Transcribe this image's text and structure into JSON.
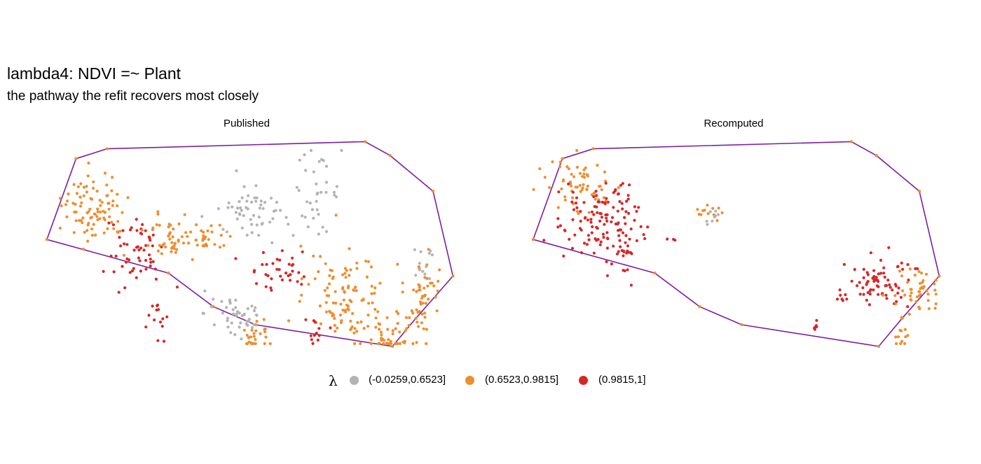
{
  "title": "lambda4: NDVI =~ Plant",
  "subtitle": "the pathway the refit recovers most closely",
  "legend": {
    "title": "λ",
    "items": [
      {
        "label": "(-0.0259,0.6523]",
        "color": "#B3B3B3"
      },
      {
        "label": "(0.6523,0.9815]",
        "color": "#EE8E2E"
      },
      {
        "label": "(0.9815,1]",
        "color": "#D62728"
      }
    ]
  },
  "colors": {
    "hull": "#7B1FA2",
    "grey": "#B3B3B3",
    "orange": "#EE8E2E",
    "red": "#D62728"
  },
  "chart_data": [
    {
      "type": "scatter",
      "panel": "Published",
      "grid": false,
      "axes": "none",
      "hull": [
        [
          0.059,
          0.474
        ],
        [
          0.122,
          0.089
        ],
        [
          0.189,
          0.042
        ],
        [
          0.747,
          0.008
        ],
        [
          0.801,
          0.074
        ],
        [
          0.894,
          0.244
        ],
        [
          0.937,
          0.648
        ],
        [
          0.857,
          0.849
        ],
        [
          0.806,
          0.983
        ],
        [
          0.51,
          0.88
        ],
        [
          0.419,
          0.794
        ],
        [
          0.322,
          0.634
        ],
        [
          0.059,
          0.474
        ]
      ],
      "clusters": [
        {
          "class": "(0.6523,0.9815]",
          "cx": 0.16,
          "cy": 0.32,
          "rx": 0.07,
          "ry": 0.16,
          "n": 90
        },
        {
          "class": "(0.9815,1]",
          "cx": 0.25,
          "cy": 0.53,
          "rx": 0.06,
          "ry": 0.18,
          "n": 55
        },
        {
          "class": "(0.6523,0.9815]",
          "cx": 0.33,
          "cy": 0.48,
          "rx": 0.06,
          "ry": 0.12,
          "n": 45
        },
        {
          "class": "(0.9815,1]",
          "cx": 0.3,
          "cy": 0.82,
          "rx": 0.03,
          "ry": 0.12,
          "n": 15
        },
        {
          "class": "(0.6523,0.9815]",
          "cx": 0.4,
          "cy": 0.47,
          "rx": 0.04,
          "ry": 0.08,
          "n": 25
        },
        {
          "class": "(-0.0259,0.6523]",
          "cx": 0.51,
          "cy": 0.35,
          "rx": 0.08,
          "ry": 0.12,
          "n": 55
        },
        {
          "class": "(-0.0259,0.6523]",
          "cx": 0.64,
          "cy": 0.25,
          "rx": 0.05,
          "ry": 0.17,
          "n": 35
        },
        {
          "class": "(-0.0259,0.6523]",
          "cx": 0.47,
          "cy": 0.83,
          "rx": 0.07,
          "ry": 0.12,
          "n": 45
        },
        {
          "class": "(0.6523,0.9815]",
          "cx": 0.51,
          "cy": 0.93,
          "rx": 0.04,
          "ry": 0.09,
          "n": 25
        },
        {
          "class": "(0.9815,1]",
          "cx": 0.56,
          "cy": 0.61,
          "rx": 0.07,
          "ry": 0.1,
          "n": 35
        },
        {
          "class": "(0.6523,0.9815]",
          "cx": 0.71,
          "cy": 0.76,
          "rx": 0.09,
          "ry": 0.2,
          "n": 110
        },
        {
          "class": "(0.6523,0.9815]",
          "cx": 0.8,
          "cy": 0.94,
          "rx": 0.05,
          "ry": 0.11,
          "n": 40
        },
        {
          "class": "(0.6523,0.9815]",
          "cx": 0.87,
          "cy": 0.72,
          "rx": 0.04,
          "ry": 0.22,
          "n": 50
        },
        {
          "class": "(-0.0259,0.6523]",
          "cx": 0.88,
          "cy": 0.58,
          "rx": 0.03,
          "ry": 0.12,
          "n": 12
        },
        {
          "class": "(0.9815,1]",
          "cx": 0.64,
          "cy": 0.92,
          "rx": 0.03,
          "ry": 0.08,
          "n": 12
        }
      ]
    },
    {
      "type": "scatter",
      "panel": "Recomputed",
      "grid": false,
      "axes": "none",
      "hull": [
        [
          0.059,
          0.474
        ],
        [
          0.122,
          0.089
        ],
        [
          0.189,
          0.042
        ],
        [
          0.747,
          0.008
        ],
        [
          0.801,
          0.074
        ],
        [
          0.894,
          0.244
        ],
        [
          0.937,
          0.648
        ],
        [
          0.857,
          0.849
        ],
        [
          0.806,
          0.983
        ],
        [
          0.51,
          0.88
        ],
        [
          0.419,
          0.794
        ],
        [
          0.322,
          0.634
        ],
        [
          0.059,
          0.474
        ]
      ],
      "clusters": [
        {
          "class": "(0.6523,0.9815]",
          "cx": 0.16,
          "cy": 0.22,
          "rx": 0.07,
          "ry": 0.14,
          "n": 60
        },
        {
          "class": "(0.9815,1]",
          "cx": 0.2,
          "cy": 0.38,
          "rx": 0.09,
          "ry": 0.18,
          "n": 120
        },
        {
          "class": "(0.9815,1]",
          "cx": 0.25,
          "cy": 0.55,
          "rx": 0.03,
          "ry": 0.14,
          "n": 20
        },
        {
          "class": "(0.6523,0.9815]",
          "cx": 0.44,
          "cy": 0.33,
          "rx": 0.04,
          "ry": 0.05,
          "n": 12
        },
        {
          "class": "(-0.0259,0.6523]",
          "cx": 0.45,
          "cy": 0.37,
          "rx": 0.03,
          "ry": 0.04,
          "n": 8
        },
        {
          "class": "(0.9815,1]",
          "cx": 0.36,
          "cy": 0.47,
          "rx": 0.01,
          "ry": 0.03,
          "n": 3
        },
        {
          "class": "(0.9815,1]",
          "cx": 0.81,
          "cy": 0.67,
          "rx": 0.07,
          "ry": 0.12,
          "n": 70
        },
        {
          "class": "(0.6523,0.9815]",
          "cx": 0.89,
          "cy": 0.72,
          "rx": 0.05,
          "ry": 0.1,
          "n": 45
        },
        {
          "class": "(0.9815,1]",
          "cx": 0.72,
          "cy": 0.75,
          "rx": 0.03,
          "ry": 0.03,
          "n": 6
        },
        {
          "class": "(0.9815,1]",
          "cx": 0.67,
          "cy": 0.9,
          "rx": 0.01,
          "ry": 0.04,
          "n": 6
        },
        {
          "class": "(0.6523,0.9815]",
          "cx": 0.86,
          "cy": 0.94,
          "rx": 0.02,
          "ry": 0.06,
          "n": 12
        }
      ]
    }
  ]
}
